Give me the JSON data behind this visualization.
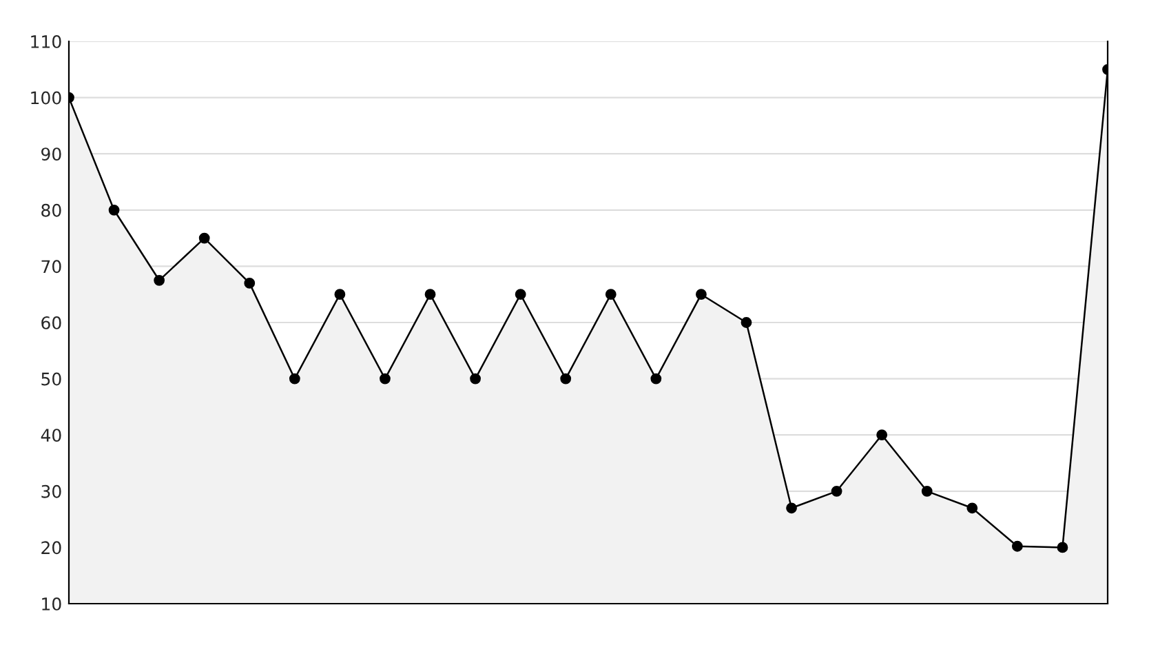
{
  "chart_data": {
    "type": "area",
    "categories": [
      null,
      null,
      null,
      null,
      null,
      null,
      null,
      null,
      null,
      null,
      null,
      null,
      null,
      null,
      null,
      null,
      null,
      null,
      null,
      null,
      null,
      null,
      null,
      null
    ],
    "series": [
      {
        "color": "#000000",
        "values": [
          100,
          80,
          67.5,
          75,
          67,
          50,
          65,
          50,
          65,
          50,
          65,
          50,
          65,
          50,
          65,
          60,
          27,
          30,
          40,
          30,
          27,
          20.2,
          20,
          105
        ]
      }
    ],
    "ylim": [
      10,
      110
    ],
    "yticks": [
      10,
      20,
      30,
      40,
      50,
      60,
      70,
      80,
      90,
      100,
      110
    ],
    "grid": "y",
    "marker": "circle",
    "line_style": "solid"
  }
}
